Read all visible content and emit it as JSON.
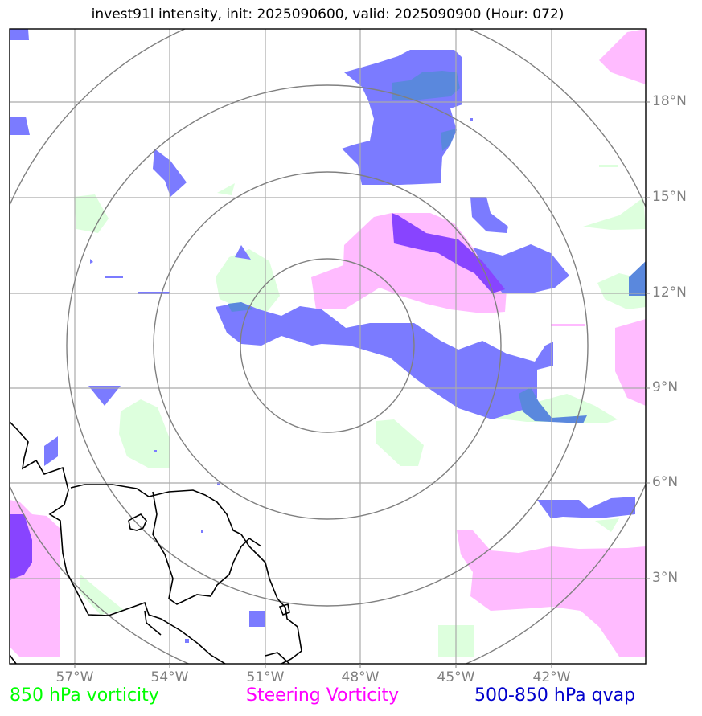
{
  "title": "invest91l intensity, init: 2025090600, valid: 2025090900 (Hour: 072)",
  "lat_labels": [
    "18°N",
    "15°N",
    "12°N",
    "9°N",
    "6°N",
    "3°N"
  ],
  "lon_labels": [
    "57°W",
    "54°W",
    "51°W",
    "48°W",
    "45°W",
    "42°W"
  ],
  "legend": [
    {
      "label": "850 hPa vorticity",
      "color": "#00ff00"
    },
    {
      "label": "Steering Vorticity",
      "color": "#ff00ff"
    },
    {
      "label": "500-850 hPa qvap",
      "color": "#0000cc"
    }
  ],
  "colors": {
    "vort850_fill": "#ddffdd",
    "steering_fill": "#ffbbff",
    "qvap_fill": "#7b7bff",
    "qvap_dark_fill": "#5a88dd",
    "overlap_fill": "#8844ff",
    "gridline": "#aaaaaa",
    "range_ring": "#808080",
    "coastline": "#000000"
  }
}
